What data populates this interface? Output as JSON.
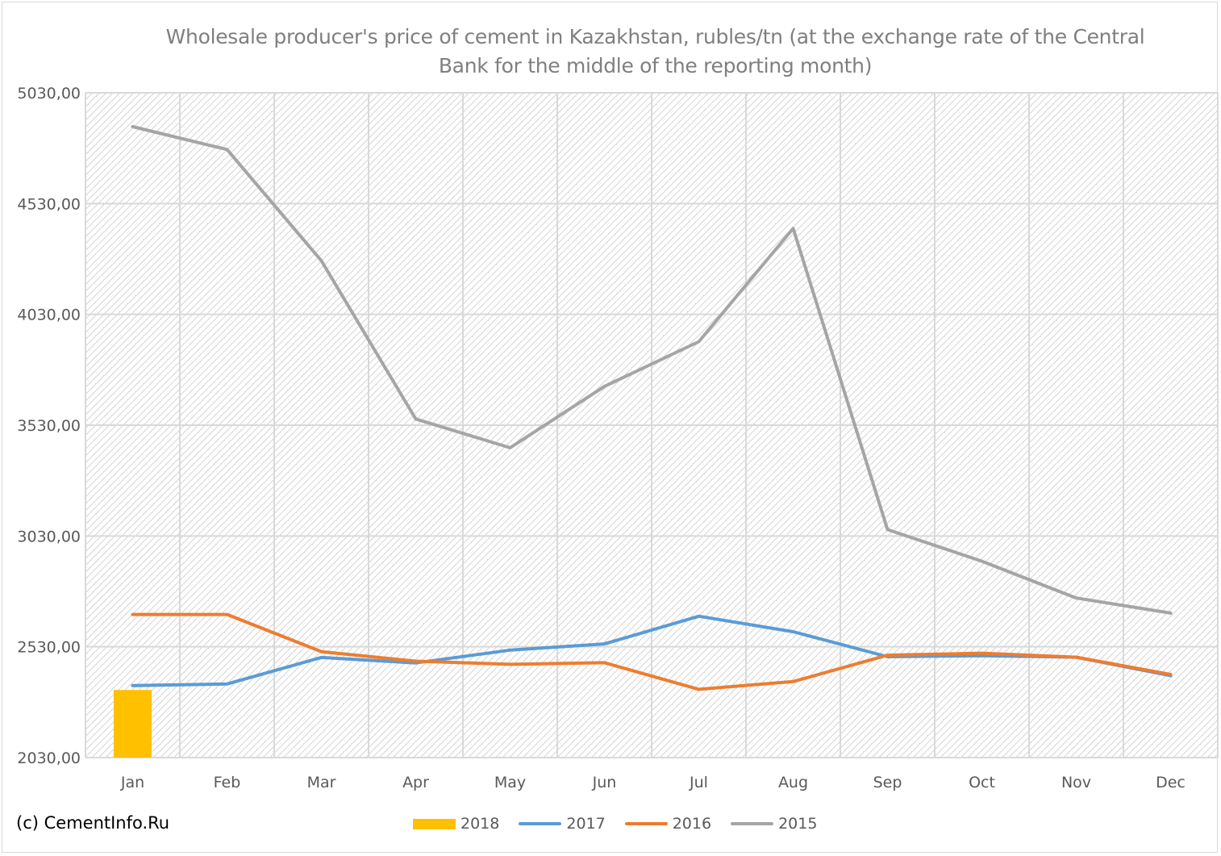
{
  "chart_data": {
    "type": "line",
    "title_lines": [
      "Wholesale producer's price of cement in Kazakhstan, rubles/tn (at the exchange rate of the Central",
      "Bank for the middle of the reporting month)"
    ],
    "categories": [
      "Jan",
      "Feb",
      "Mar",
      "Apr",
      "May",
      "Jun",
      "Jul",
      "Aug",
      "Sep",
      "Oct",
      "Nov",
      "Dec"
    ],
    "y_ticks": [
      "2030,00",
      "2530,00",
      "3030,00",
      "3530,00",
      "4030,00",
      "4530,00",
      "5030,00"
    ],
    "ylim": [
      2030,
      5030
    ],
    "grid": true,
    "legend_position": "bottom",
    "series": [
      {
        "name": "2018",
        "type": "bar",
        "color": "#ffc000",
        "values": [
          2335,
          null,
          null,
          null,
          null,
          null,
          null,
          null,
          null,
          null,
          null,
          null
        ]
      },
      {
        "name": "2017",
        "type": "line",
        "color": "#5b9bd5",
        "values": [
          2355,
          2362,
          2482,
          2457,
          2515,
          2543,
          2668,
          2598,
          2485,
          2490,
          2483,
          2400
        ]
      },
      {
        "name": "2016",
        "type": "line",
        "color": "#ed7d31",
        "values": [
          2676,
          2676,
          2508,
          2465,
          2451,
          2458,
          2338,
          2373,
          2492,
          2501,
          2483,
          2405
        ]
      },
      {
        "name": "2015",
        "type": "line",
        "color": "#a5a5a5",
        "values": [
          4877,
          4774,
          4272,
          3558,
          3428,
          3705,
          3907,
          4418,
          3059,
          2916,
          2750,
          2682
        ]
      }
    ]
  },
  "credit": "(c) CementInfo.Ru"
}
